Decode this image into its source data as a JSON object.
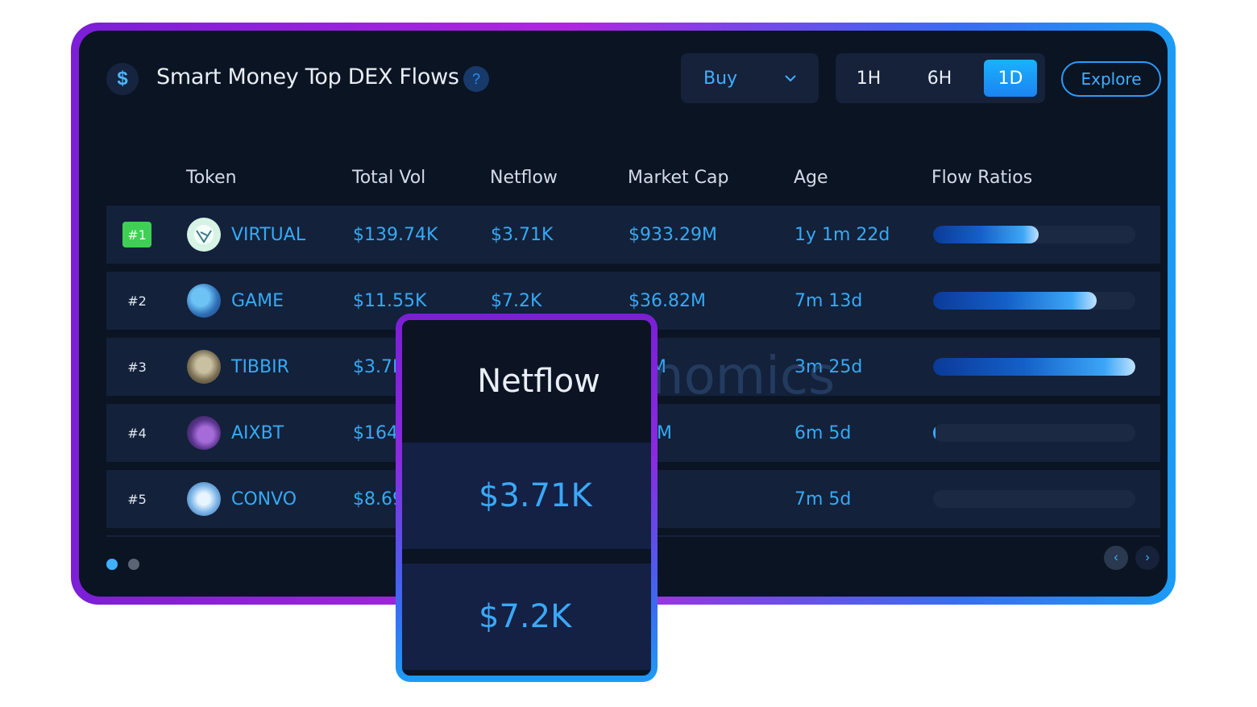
{
  "header": {
    "logo_glyph": "$",
    "title": "Smart Money Top DEX Flows",
    "help_glyph": "?",
    "filter_value": "Buy",
    "time_ranges": [
      "1H",
      "6H",
      "1D"
    ],
    "active_range": "1D",
    "explore_label": "Explore"
  },
  "table": {
    "columns": [
      "Token",
      "Total Vol",
      "Netflow",
      "Market Cap",
      "Age",
      "Flow Ratios"
    ],
    "rows": [
      {
        "rank": "#1",
        "token": "VIRTUAL",
        "total_vol": "$139.74K",
        "netflow": "$3.71K",
        "market_cap": "$933.29M",
        "age": "1y 1m 22d",
        "flow_ratio": 0.52
      },
      {
        "rank": "#2",
        "token": "GAME",
        "total_vol": "$11.55K",
        "netflow": "$7.2K",
        "market_cap": "$36.82M",
        "age": "7m 13d",
        "flow_ratio": 0.81
      },
      {
        "rank": "#3",
        "token": "TIBBIR",
        "total_vol": "$3.7K",
        "netflow": "",
        "market_cap": "53M",
        "age": "3m 25d",
        "flow_ratio": 1.0
      },
      {
        "rank": "#4",
        "token": "AIXBT",
        "total_vol": "$164.7",
        "netflow": "",
        "market_cap": ".99M",
        "age": "6m 5d",
        "flow_ratio": 0.01
      },
      {
        "rank": "#5",
        "token": "CONVO",
        "total_vol": "$8.69",
        "netflow": "",
        "market_cap": "M",
        "age": "7m 5d",
        "flow_ratio": 0.0
      }
    ]
  },
  "watermark": "nomics",
  "pagination": {
    "pages": 2,
    "current": 1,
    "prev_glyph": "‹",
    "next_glyph": "›"
  },
  "zoom_callout": {
    "header": "Netflow",
    "values": [
      "$3.71K",
      "$7.2K"
    ]
  },
  "colors": {
    "accent": "#35aaf5",
    "background": "#0b1423",
    "row": "#13213a",
    "rank_badge": "#3fcf55"
  },
  "icons": {
    "logo": "dollar-icon",
    "help": "question-icon",
    "dropdown": "chevron-down-icon",
    "prev": "chevron-left-icon",
    "next": "chevron-right-icon"
  }
}
